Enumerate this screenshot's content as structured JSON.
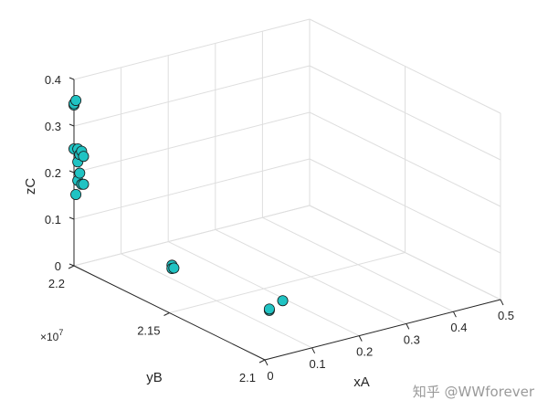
{
  "chart_data": {
    "type": "scatter",
    "projection": "3d",
    "title": "",
    "xlabel": "xA",
    "ylabel": "yB",
    "zlabel": "zC",
    "y_exponent_prefix": "×10",
    "y_exponent_power": "7",
    "xlim": [
      0,
      0.5
    ],
    "ylim": [
      21000000,
      22000000
    ],
    "zlim": [
      0,
      0.4
    ],
    "x_ticks": [
      "0",
      "0.1",
      "0.2",
      "0.3",
      "0.4",
      "0.5"
    ],
    "y_ticks": [
      "2.1",
      "2.15",
      "2.2"
    ],
    "z_ticks": [
      "0",
      "0.1",
      "0.2",
      "0.3",
      "0.4"
    ],
    "grid": true,
    "marker_color": "#20c3c3",
    "points": [
      {
        "x": 0.0,
        "y": 22000000,
        "z": 0.345
      },
      {
        "x": 0.0,
        "y": 22000000,
        "z": 0.348
      },
      {
        "x": 0.0,
        "y": 21990000,
        "z": 0.357
      },
      {
        "x": 0.0,
        "y": 22000000,
        "z": 0.251
      },
      {
        "x": 0.0,
        "y": 21980000,
        "z": 0.255
      },
      {
        "x": 0.0,
        "y": 21960000,
        "z": 0.254
      },
      {
        "x": 0.0,
        "y": 21950000,
        "z": 0.245
      },
      {
        "x": 0.0,
        "y": 21970000,
        "z": 0.245
      },
      {
        "x": 0.0,
        "y": 21980000,
        "z": 0.227
      },
      {
        "x": 0.0,
        "y": 21970000,
        "z": 0.205
      },
      {
        "x": 0.0,
        "y": 21980000,
        "z": 0.187
      },
      {
        "x": 0.0,
        "y": 21960000,
        "z": 0.183
      },
      {
        "x": 0.0,
        "y": 21950000,
        "z": 0.185
      },
      {
        "x": 0.0,
        "y": 21990000,
        "z": 0.155
      },
      {
        "x": 0.05,
        "y": 21610000,
        "z": 0.067
      },
      {
        "x": 0.05,
        "y": 21600000,
        "z": 0.063
      },
      {
        "x": 0.05,
        "y": 21610000,
        "z": 0.06
      },
      {
        "x": 0.05,
        "y": 21100000,
        "z": 0.073
      },
      {
        "x": 0.05,
        "y": 21100000,
        "z": 0.076
      },
      {
        "x": 0.05,
        "y": 21030000,
        "z": 0.108
      }
    ]
  },
  "watermark": "知乎 @WWforever"
}
